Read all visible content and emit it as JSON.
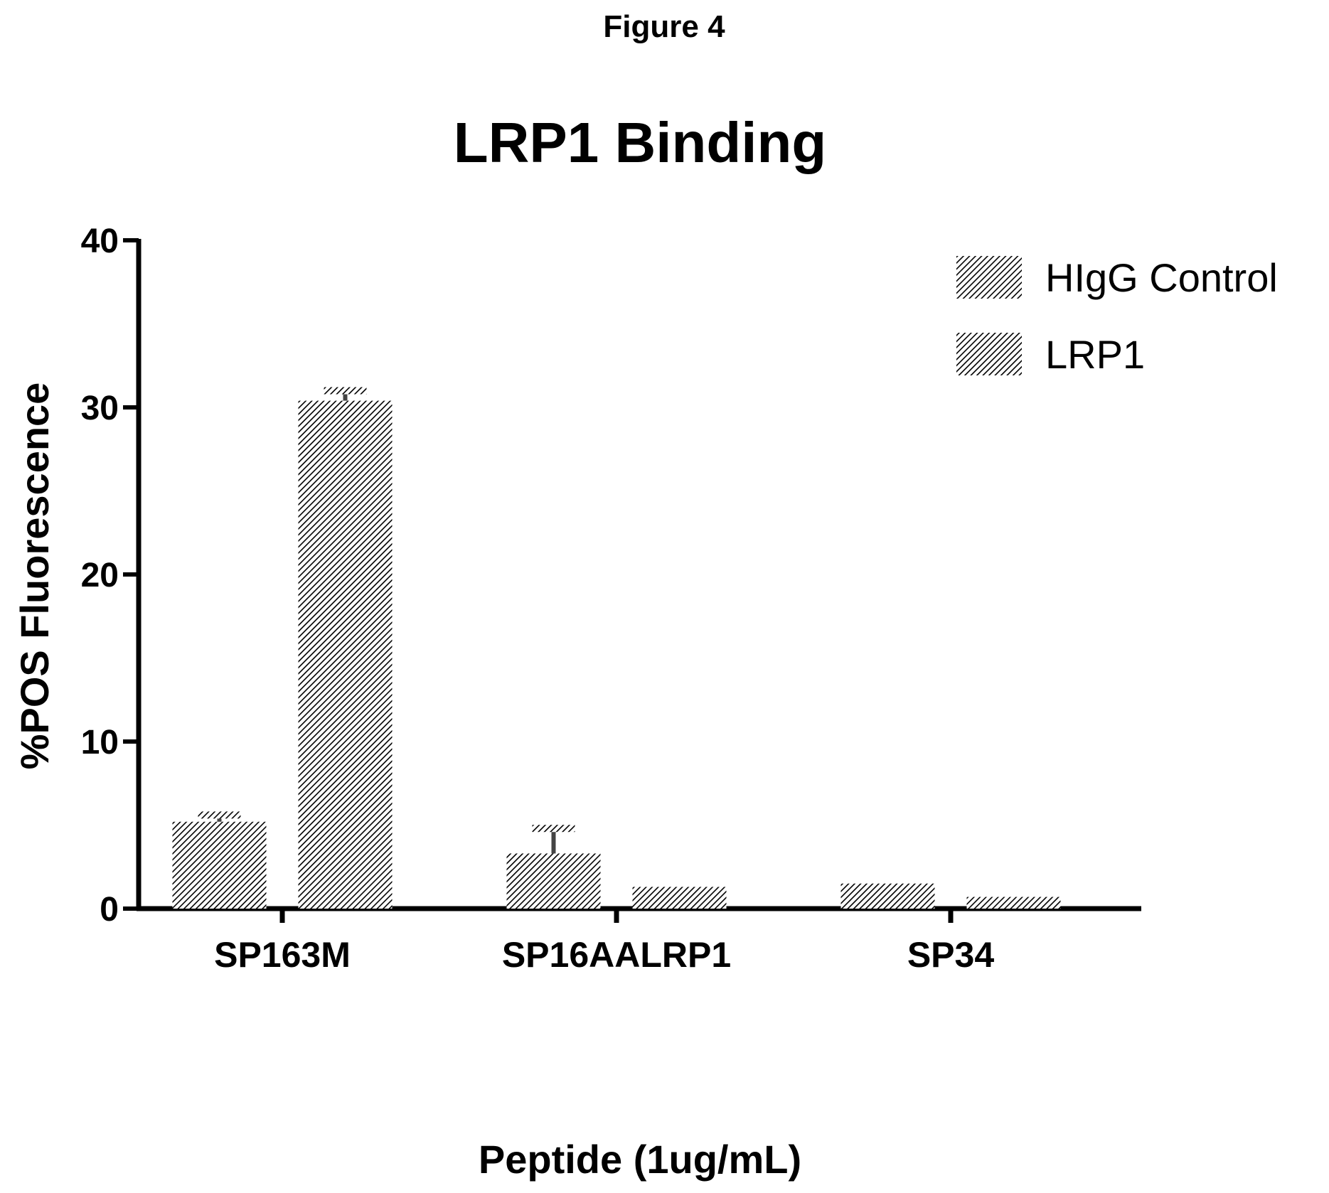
{
  "figure_label": "Figure 4",
  "chart_data": {
    "type": "bar",
    "title": "LRP1 Binding",
    "xlabel": "Peptide (1ug/mL)",
    "ylabel": "%POS Fluorescence",
    "ylim": [
      0,
      40
    ],
    "yticks": [
      0,
      10,
      20,
      30,
      40
    ],
    "categories": [
      "SP163M",
      "SP16AALRP1",
      "SP34"
    ],
    "series": [
      {
        "name": "HIgG Control",
        "values": [
          5.2,
          3.3,
          1.5
        ],
        "errors": [
          0.4,
          1.5,
          0.0
        ]
      },
      {
        "name": "LRP1",
        "values": [
          30.4,
          1.3,
          0.7
        ],
        "errors": [
          0.6,
          0.0,
          0.0
        ]
      }
    ],
    "legend": {
      "position": "top-right"
    },
    "grid": false
  }
}
